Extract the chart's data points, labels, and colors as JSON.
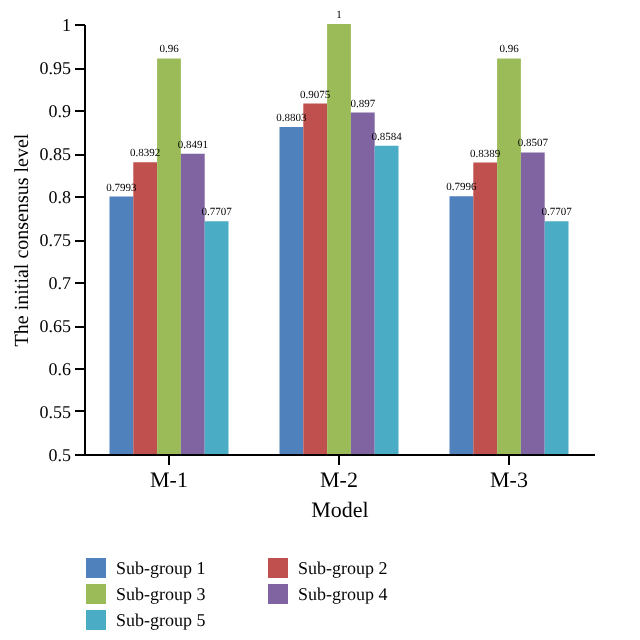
{
  "chart_data": {
    "type": "bar",
    "xlabel": "Model",
    "ylabel": "The initial consensus level",
    "categories": [
      "M-1",
      "M-2",
      "M-3"
    ],
    "series": [
      {
        "name": "Sub-group 1",
        "color": "#4f81bd",
        "values": [
          0.7993,
          0.8803,
          0.7996
        ]
      },
      {
        "name": "Sub-group 2",
        "color": "#c0504d",
        "values": [
          0.8392,
          0.9075,
          0.8389
        ]
      },
      {
        "name": "Sub-group 3",
        "color": "#9bbb59",
        "values": [
          0.96,
          1,
          0.96
        ]
      },
      {
        "name": "Sub-group 4",
        "color": "#8064a2",
        "values": [
          0.8491,
          0.897,
          0.8507
        ]
      },
      {
        "name": "Sub-group 5",
        "color": "#4bacc6",
        "values": [
          0.7707,
          0.8584,
          0.7707
        ]
      }
    ],
    "ylim": [
      0.5,
      1
    ],
    "yticks": [
      0.5,
      0.55,
      0.6,
      0.65,
      0.7,
      0.75,
      0.8,
      0.85,
      0.9,
      0.95,
      1
    ],
    "data_labels": true,
    "grid": false,
    "legend": "bottom"
  }
}
